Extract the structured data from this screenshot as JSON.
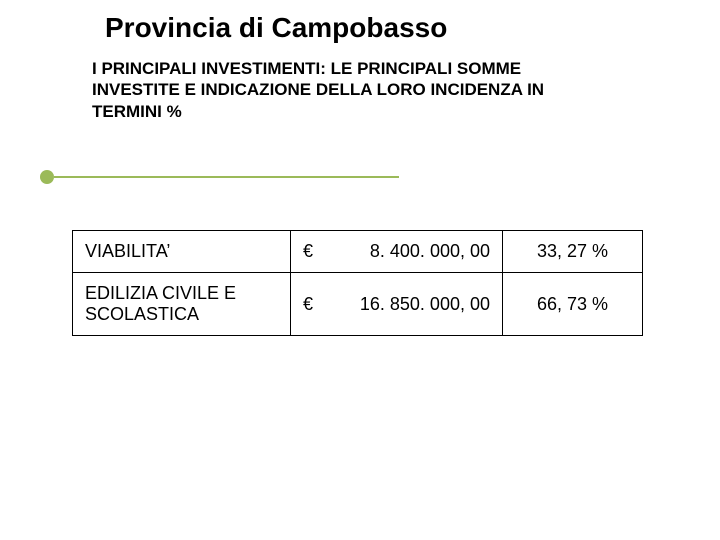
{
  "title": "Provincia di Campobasso",
  "subtitle": "I PRINCIPALI INVESTIMENTI: LE PRINCIPALI SOMME INVESTITE E INDICAZIONE DELLA LORO INCIDENZA IN TERMINI %",
  "accent_color": "#9bba59",
  "table": {
    "rows": [
      {
        "label": "VIABILITA’",
        "currency": "€",
        "amount": "8. 400. 000, 00",
        "percent": "33, 27 %"
      },
      {
        "label": "EDILIZIA CIVILE E SCOLASTICA",
        "currency": "€",
        "amount": "16. 850. 000, 00",
        "percent": "66, 73 %"
      }
    ]
  }
}
